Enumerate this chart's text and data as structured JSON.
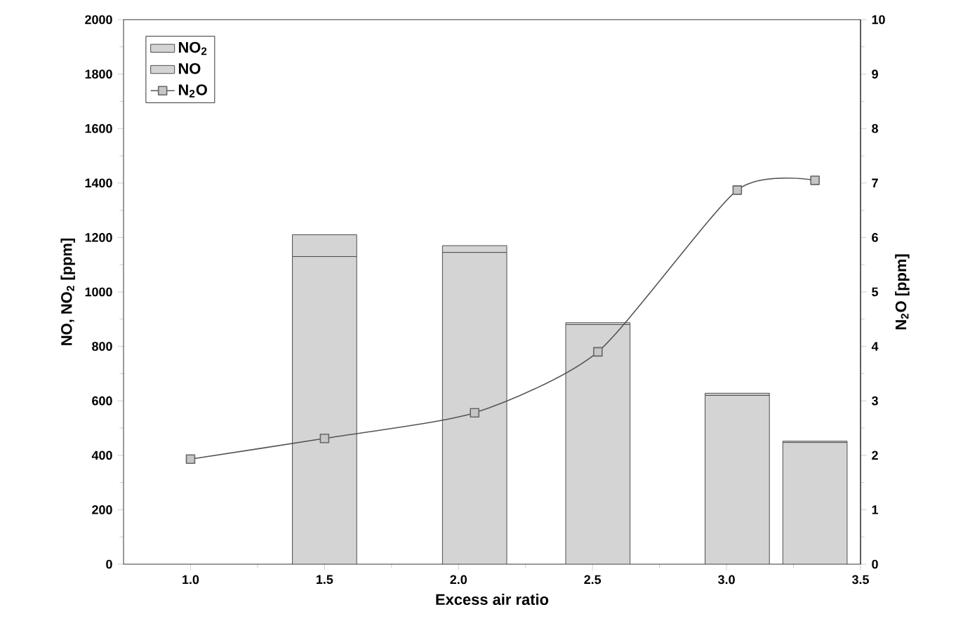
{
  "chart_data": {
    "type": "bar",
    "stacked": true,
    "xlabel": "Excess air ratio",
    "ylabel": "NO, NO$_{2}$ [ppm]",
    "y2label": "N$_{2}$O [ppm]",
    "x": [
      1.5,
      2.06,
      2.52,
      3.04,
      3.33
    ],
    "series": [
      {
        "name": "NO",
        "color": "#d4d4d4",
        "values": [
          1130,
          1145,
          880,
          620,
          447
        ]
      },
      {
        "name": "NO$_{2}$",
        "color": "#d4d4d4",
        "values": [
          80,
          25,
          7,
          8,
          5
        ]
      },
      {
        "name": "N$_{2}$O",
        "type": "line",
        "axis": "y2",
        "color": "#555555",
        "marker": "square",
        "x": [
          1.0,
          1.5,
          2.06,
          2.52,
          3.04,
          3.33
        ],
        "values": [
          1.93,
          2.31,
          2.78,
          3.9,
          6.87,
          7.05
        ]
      }
    ],
    "xlim": [
      0.75,
      3.5
    ],
    "xticks": [
      {
        "value": 1,
        "label": "1.0"
      },
      {
        "value": 1.5,
        "label": "1.5"
      },
      {
        "value": 2,
        "label": "2.0"
      },
      {
        "value": 2.5,
        "label": "2.5"
      },
      {
        "value": 3,
        "label": "3.0"
      },
      {
        "value": 3.5,
        "label": "3.5"
      }
    ],
    "ylim": [
      0,
      2000
    ],
    "yticks": [
      0,
      200,
      400,
      600,
      800,
      1000,
      1200,
      1400,
      1600,
      1800,
      2000
    ],
    "y2lim": [
      0,
      10
    ],
    "y2ticks": [
      0,
      1,
      2,
      3,
      4,
      5,
      6,
      7,
      8,
      9,
      10
    ],
    "legend": "top left",
    "grid": false
  }
}
